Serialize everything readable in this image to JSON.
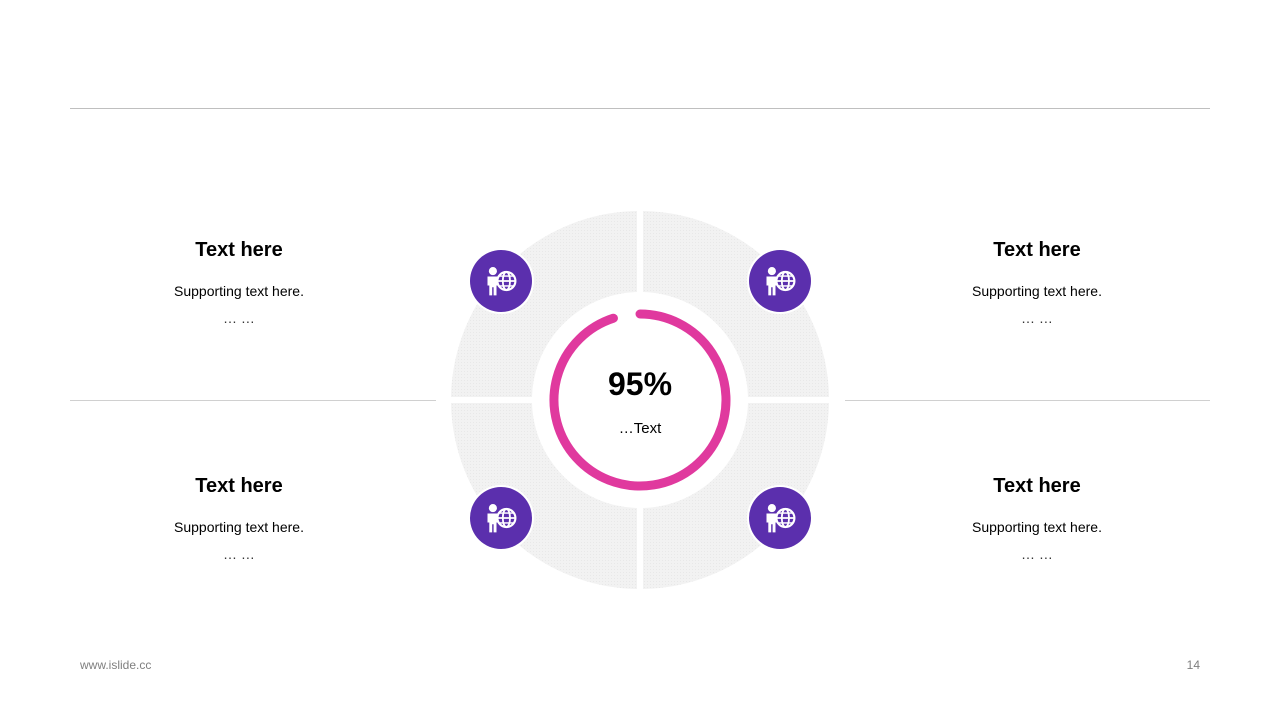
{
  "blocks": [
    {
      "title": "Text here",
      "subtitle": "Supporting  text here.",
      "ellipsis": "… …"
    },
    {
      "title": "Text here",
      "subtitle": "Supporting  text here.",
      "ellipsis": "… …"
    },
    {
      "title": "Text here",
      "subtitle": "Supporting  text here.",
      "ellipsis": "… …"
    },
    {
      "title": "Text here",
      "subtitle": "Supporting  text here.",
      "ellipsis": "… …"
    }
  ],
  "center": {
    "value": "95%",
    "label": "…Text",
    "progress": 0.95
  },
  "icons": {
    "name": "person-globe-icon",
    "color": "#5b2fad"
  },
  "colors": {
    "ring": "#e0399e",
    "segment": "#f2f2f2",
    "divider": "#bfbfbf"
  },
  "footer": {
    "website": "www.islide.cc",
    "page_number": "14"
  }
}
